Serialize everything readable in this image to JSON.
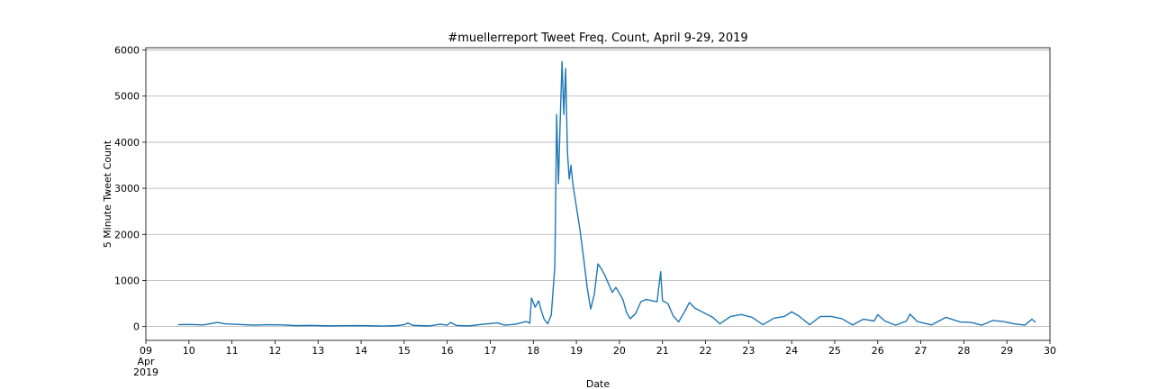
{
  "chart_data": {
    "type": "line",
    "title": "#muellerreport Tweet Freq. Count, April 9-29, 2019",
    "xlabel": "Date",
    "ylabel": "5 Minute Tweet Count",
    "xlim": [
      "2019-04-09",
      "2019-04-30"
    ],
    "ylim": [
      -300,
      6050
    ],
    "grid": {
      "y": true,
      "x": false
    },
    "line_color": "#1f77b4",
    "y_ticks": [
      0,
      1000,
      2000,
      3000,
      4000,
      5000,
      6000
    ],
    "x_ticks": [
      {
        "date": "2019-04-09",
        "label": "09",
        "sub1": "Apr",
        "sub2": "2019"
      },
      {
        "date": "2019-04-10",
        "label": "10"
      },
      {
        "date": "2019-04-11",
        "label": "11"
      },
      {
        "date": "2019-04-12",
        "label": "12"
      },
      {
        "date": "2019-04-13",
        "label": "13"
      },
      {
        "date": "2019-04-14",
        "label": "14"
      },
      {
        "date": "2019-04-15",
        "label": "15"
      },
      {
        "date": "2019-04-16",
        "label": "16"
      },
      {
        "date": "2019-04-17",
        "label": "17"
      },
      {
        "date": "2019-04-18",
        "label": "18"
      },
      {
        "date": "2019-04-19",
        "label": "19"
      },
      {
        "date": "2019-04-20",
        "label": "20"
      },
      {
        "date": "2019-04-21",
        "label": "21"
      },
      {
        "date": "2019-04-22",
        "label": "22"
      },
      {
        "date": "2019-04-23",
        "label": "23"
      },
      {
        "date": "2019-04-24",
        "label": "24"
      },
      {
        "date": "2019-04-25",
        "label": "25"
      },
      {
        "date": "2019-04-26",
        "label": "26"
      },
      {
        "date": "2019-04-27",
        "label": "27"
      },
      {
        "date": "2019-04-28",
        "label": "28"
      },
      {
        "date": "2019-04-29",
        "label": "29"
      },
      {
        "date": "2019-04-30",
        "label": "30"
      }
    ],
    "series": [
      {
        "points": [
          [
            "2019-04-09 18:00",
            40
          ],
          [
            "2019-04-10 00:00",
            45
          ],
          [
            "2019-04-10 08:00",
            35
          ],
          [
            "2019-04-10 16:00",
            90
          ],
          [
            "2019-04-10 20:00",
            60
          ],
          [
            "2019-04-11 04:00",
            45
          ],
          [
            "2019-04-11 12:00",
            30
          ],
          [
            "2019-04-11 20:00",
            40
          ],
          [
            "2019-04-12 04:00",
            35
          ],
          [
            "2019-04-12 12:00",
            20
          ],
          [
            "2019-04-12 20:00",
            25
          ],
          [
            "2019-04-13 06:00",
            15
          ],
          [
            "2019-04-13 16:00",
            20
          ],
          [
            "2019-04-14 02:00",
            20
          ],
          [
            "2019-04-14 12:00",
            10
          ],
          [
            "2019-04-14 20:00",
            20
          ],
          [
            "2019-04-15 00:00",
            40
          ],
          [
            "2019-04-15 02:00",
            75
          ],
          [
            "2019-04-15 05:00",
            25
          ],
          [
            "2019-04-15 14:00",
            15
          ],
          [
            "2019-04-15 20:00",
            50
          ],
          [
            "2019-04-16 00:00",
            30
          ],
          [
            "2019-04-16 02:00",
            90
          ],
          [
            "2019-04-16 05:00",
            25
          ],
          [
            "2019-04-16 12:00",
            15
          ],
          [
            "2019-04-16 20:00",
            50
          ],
          [
            "2019-04-17 04:00",
            80
          ],
          [
            "2019-04-17 08:00",
            30
          ],
          [
            "2019-04-17 14:00",
            50
          ],
          [
            "2019-04-17 20:00",
            110
          ],
          [
            "2019-04-17 22:00",
            70
          ],
          [
            "2019-04-17 23:00",
            620
          ],
          [
            "2019-04-18 01:00",
            420
          ],
          [
            "2019-04-18 03:00",
            560
          ],
          [
            "2019-04-18 04:00",
            400
          ],
          [
            "2019-04-18 06:00",
            160
          ],
          [
            "2019-04-18 08:00",
            60
          ],
          [
            "2019-04-18 10:00",
            250
          ],
          [
            "2019-04-18 12:00",
            1300
          ],
          [
            "2019-04-18 13:00",
            4600
          ],
          [
            "2019-04-18 14:00",
            3100
          ],
          [
            "2019-04-18 15:00",
            4500
          ],
          [
            "2019-04-18 16:00",
            5750
          ],
          [
            "2019-04-18 17:00",
            4600
          ],
          [
            "2019-04-18 18:00",
            5600
          ],
          [
            "2019-04-18 19:00",
            3800
          ],
          [
            "2019-04-18 20:00",
            3200
          ],
          [
            "2019-04-18 21:00",
            3500
          ],
          [
            "2019-04-18 22:00",
            3100
          ],
          [
            "2019-04-19 00:00",
            2600
          ],
          [
            "2019-04-19 02:00",
            2100
          ],
          [
            "2019-04-19 04:00",
            1500
          ],
          [
            "2019-04-19 06:00",
            850
          ],
          [
            "2019-04-19 08:00",
            380
          ],
          [
            "2019-04-19 10:00",
            700
          ],
          [
            "2019-04-19 12:00",
            1360
          ],
          [
            "2019-04-19 14:00",
            1250
          ],
          [
            "2019-04-19 16:00",
            1100
          ],
          [
            "2019-04-19 18:00",
            920
          ],
          [
            "2019-04-19 20:00",
            740
          ],
          [
            "2019-04-19 22:00",
            850
          ],
          [
            "2019-04-20 00:00",
            720
          ],
          [
            "2019-04-20 02:00",
            580
          ],
          [
            "2019-04-20 04:00",
            300
          ],
          [
            "2019-04-20 06:00",
            170
          ],
          [
            "2019-04-20 09:00",
            280
          ],
          [
            "2019-04-20 12:00",
            540
          ],
          [
            "2019-04-20 15:00",
            590
          ],
          [
            "2019-04-20 18:00",
            560
          ],
          [
            "2019-04-20 21:00",
            540
          ],
          [
            "2019-04-20 23:00",
            1190
          ],
          [
            "2019-04-21 00:00",
            560
          ],
          [
            "2019-04-21 03:00",
            500
          ],
          [
            "2019-04-21 06:00",
            230
          ],
          [
            "2019-04-21 09:00",
            100
          ],
          [
            "2019-04-21 12:00",
            300
          ],
          [
            "2019-04-21 15:00",
            520
          ],
          [
            "2019-04-21 18:00",
            400
          ],
          [
            "2019-04-21 22:00",
            320
          ],
          [
            "2019-04-22 04:00",
            200
          ],
          [
            "2019-04-22 08:00",
            60
          ],
          [
            "2019-04-22 14:00",
            220
          ],
          [
            "2019-04-22 20:00",
            260
          ],
          [
            "2019-04-23 02:00",
            200
          ],
          [
            "2019-04-23 08:00",
            40
          ],
          [
            "2019-04-23 14:00",
            180
          ],
          [
            "2019-04-23 20:00",
            220
          ],
          [
            "2019-04-24 00:00",
            320
          ],
          [
            "2019-04-24 04:00",
            230
          ],
          [
            "2019-04-24 10:00",
            40
          ],
          [
            "2019-04-24 16:00",
            220
          ],
          [
            "2019-04-24 22:00",
            220
          ],
          [
            "2019-04-25 04:00",
            170
          ],
          [
            "2019-04-25 10:00",
            35
          ],
          [
            "2019-04-25 16:00",
            160
          ],
          [
            "2019-04-25 22:00",
            120
          ],
          [
            "2019-04-26 00:00",
            260
          ],
          [
            "2019-04-26 04:00",
            120
          ],
          [
            "2019-04-26 10:00",
            30
          ],
          [
            "2019-04-26 16:00",
            120
          ],
          [
            "2019-04-26 18:00",
            270
          ],
          [
            "2019-04-26 22:00",
            110
          ],
          [
            "2019-04-27 06:00",
            35
          ],
          [
            "2019-04-27 14:00",
            200
          ],
          [
            "2019-04-27 22:00",
            100
          ],
          [
            "2019-04-28 04:00",
            90
          ],
          [
            "2019-04-28 10:00",
            30
          ],
          [
            "2019-04-28 16:00",
            130
          ],
          [
            "2019-04-28 22:00",
            110
          ],
          [
            "2019-04-29 04:00",
            60
          ],
          [
            "2019-04-29 10:00",
            30
          ],
          [
            "2019-04-29 14:00",
            160
          ],
          [
            "2019-04-29 16:00",
            90
          ]
        ]
      }
    ]
  }
}
